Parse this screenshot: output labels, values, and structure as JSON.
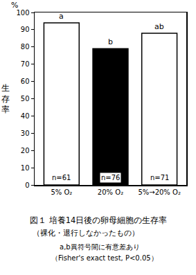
{
  "chart_data": {
    "type": "bar",
    "title": "図１ 培養14日後の卵母細胞の生存率",
    "subtitle": "（裸化・退行しなかったもの）",
    "y_label": "生存率",
    "y_unit": "%",
    "categories": [
      "5% O₂",
      "20% O₂",
      "5%→20% O₂"
    ],
    "values": [
      94,
      79,
      88
    ],
    "colors": [
      "#ffffff",
      "#000000",
      "#ffffff"
    ],
    "letters": [
      "a",
      "b",
      "ab"
    ],
    "n_labels": [
      "n=61",
      "n=76",
      "n=71"
    ],
    "notes": [
      "a,b異符号間に有意差あり",
      "（Fisher's exact test, P<0.05）"
    ],
    "ylim": [
      0,
      100
    ],
    "yticks": [
      0,
      10,
      20,
      30,
      40,
      50,
      60,
      70,
      80,
      90,
      100
    ],
    "grid": false
  }
}
